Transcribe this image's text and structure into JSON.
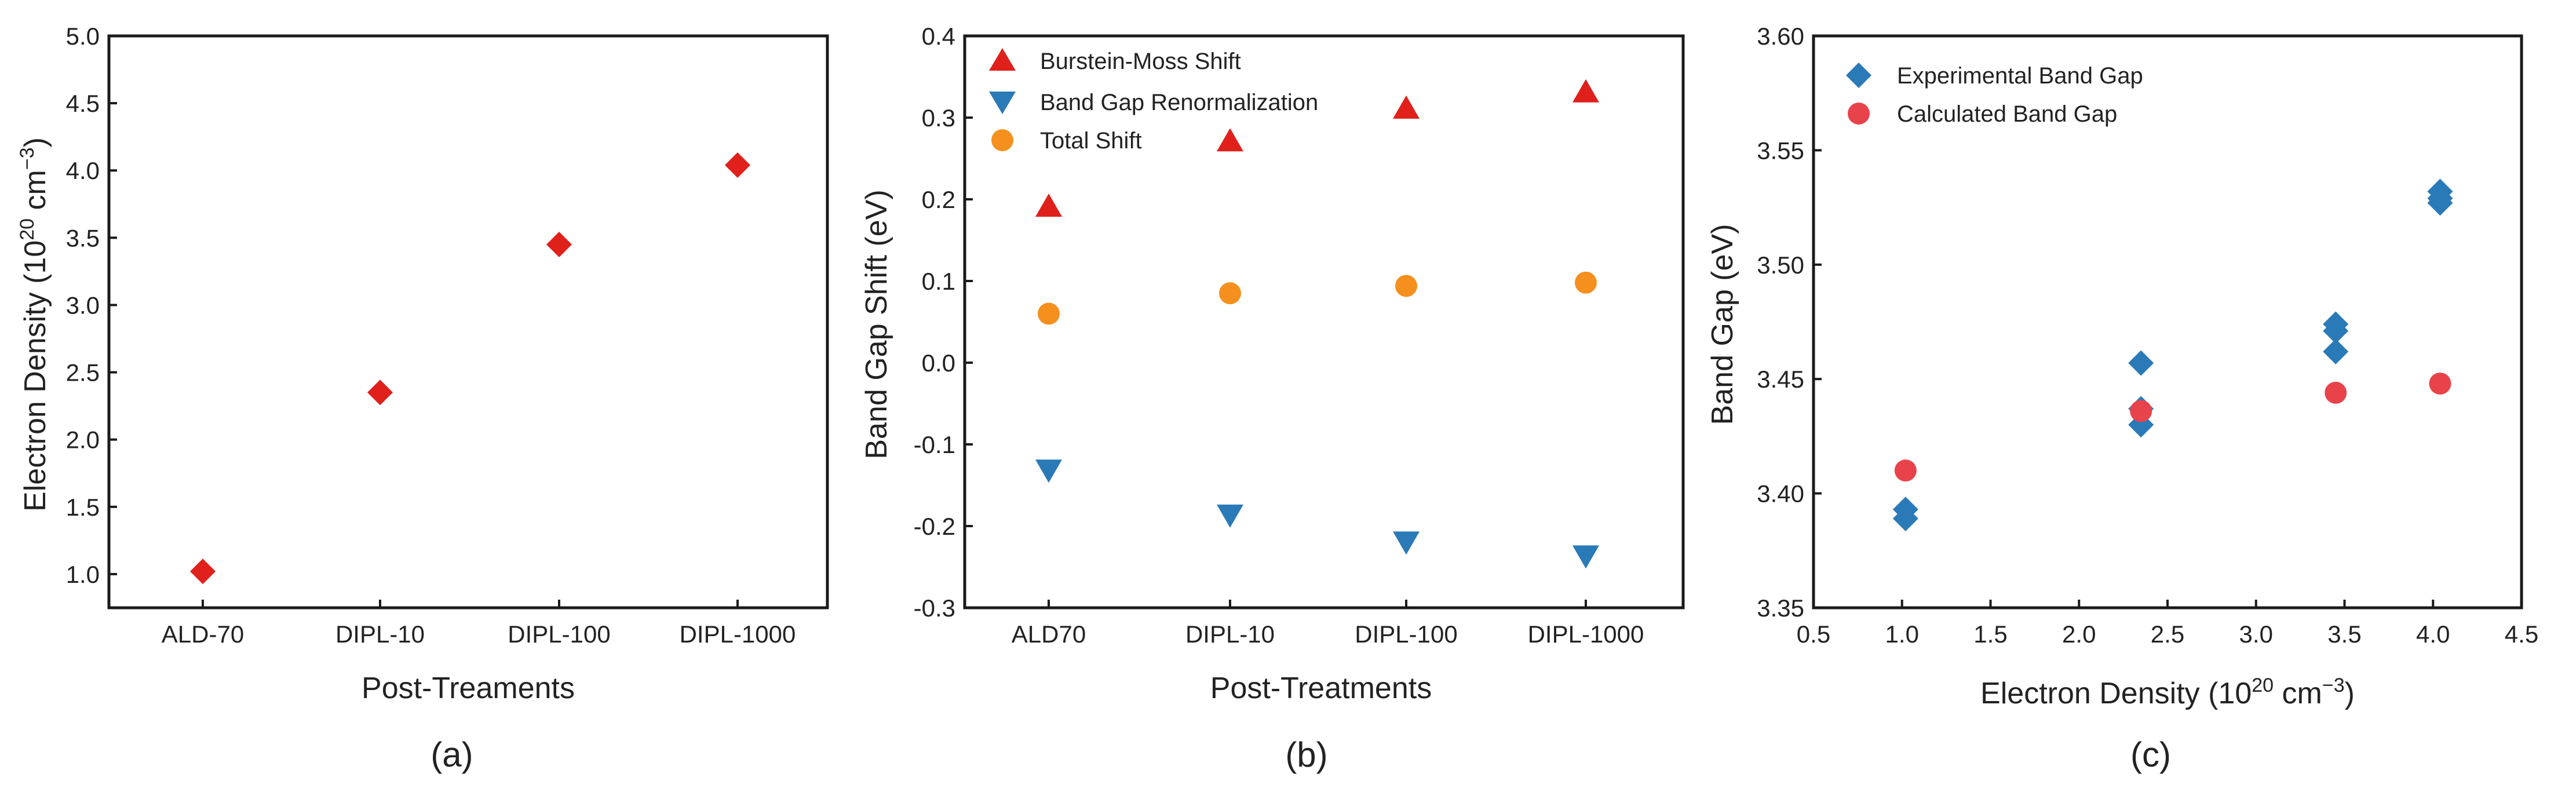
{
  "colors": {
    "red": "#e0201b",
    "blue": "#2a7ab8",
    "orange": "#f5901e",
    "pink": "#e8434b"
  },
  "chart_data": [
    {
      "type": "scatter",
      "panel": "(a)",
      "xlabel": "Post-Treaments",
      "ylabel": {
        "main": "Electron Density (10",
        "sup1": "20",
        "mid": " cm",
        "sup2": "−3",
        "end": ")"
      },
      "categories": [
        "ALD-70",
        "DIPL-10",
        "DIPL-100",
        "DIPL-1000"
      ],
      "ylim": [
        0.75,
        5.0
      ],
      "yticks": [
        "1.0",
        "1.5",
        "2.0",
        "2.5",
        "3.0",
        "3.5",
        "4.0",
        "4.5",
        "5.0"
      ],
      "series": [
        {
          "name": "Electron Density",
          "marker": "diamond",
          "color": "#e0201b",
          "values": [
            1.02,
            2.35,
            3.45,
            4.04
          ]
        }
      ]
    },
    {
      "type": "scatter",
      "panel": "(b)",
      "xlabel": "Post-Treatments",
      "ylabel": {
        "main": "Band Gap Shift (eV)"
      },
      "categories": [
        "ALD70",
        "DIPL-10",
        "DIPL-100",
        "DIPL-1000"
      ],
      "ylim": [
        -0.3,
        0.4
      ],
      "yticks": [
        "-0.3",
        "-0.2",
        "-0.1",
        "0.0",
        "0.1",
        "0.2",
        "0.3",
        "0.4"
      ],
      "legend": "top-left",
      "series": [
        {
          "name": "Burstein-Moss Shift",
          "marker": "triangle-up",
          "color": "#e0201b",
          "values": [
            0.19,
            0.27,
            0.31,
            0.33
          ]
        },
        {
          "name": "Band Gap Renormalization",
          "marker": "triangle-down",
          "color": "#2a7ab8",
          "values": [
            -0.13,
            -0.185,
            -0.218,
            -0.235
          ]
        },
        {
          "name": "Total Shift",
          "marker": "circle",
          "color": "#f5901e",
          "values": [
            0.06,
            0.085,
            0.094,
            0.098
          ]
        }
      ]
    },
    {
      "type": "scatter",
      "panel": "(c)",
      "xlabel": {
        "main": "Electron Density (10",
        "sup1": "20",
        "mid": " cm",
        "sup2": "−3",
        "end": ")"
      },
      "ylabel": {
        "main": "Band Gap (eV)"
      },
      "xlim": [
        0.5,
        4.5
      ],
      "xticks": [
        "0.5",
        "1.0",
        "1.5",
        "2.0",
        "2.5",
        "3.0",
        "3.5",
        "4.0",
        "4.5"
      ],
      "ylim": [
        3.35,
        3.6
      ],
      "yticks": [
        "3.35",
        "3.40",
        "3.45",
        "3.50",
        "3.55",
        "3.60"
      ],
      "legend": "top-left",
      "series": [
        {
          "name": "Experimental Band Gap",
          "marker": "diamond",
          "color": "#2a7ab8",
          "x": [
            1.02,
            1.02,
            2.35,
            2.35,
            2.35,
            3.45,
            3.45,
            3.45,
            4.04,
            4.04,
            4.04
          ],
          "y": [
            3.393,
            3.389,
            3.457,
            3.437,
            3.43,
            3.474,
            3.471,
            3.462,
            3.532,
            3.529,
            3.527
          ]
        },
        {
          "name": "Calculated Band Gap",
          "marker": "circle",
          "color": "#e8434b",
          "x": [
            1.02,
            2.35,
            3.45,
            4.04
          ],
          "y": [
            3.41,
            3.436,
            3.444,
            3.448
          ]
        }
      ]
    }
  ]
}
